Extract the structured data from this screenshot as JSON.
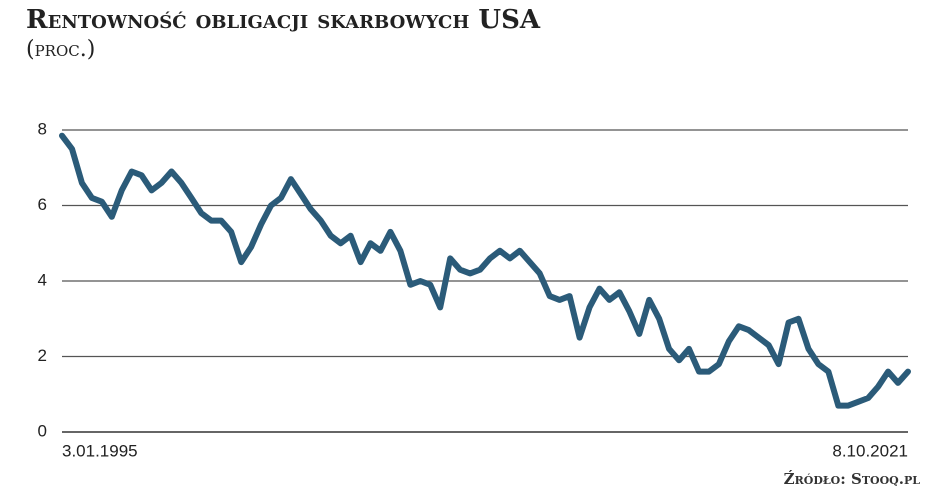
{
  "chart_data": {
    "type": "line",
    "title": "Rentowność obligacji skarbowych USA",
    "subtitle": "(proc.)",
    "source": "Źródło: Stooq.pl",
    "categories": [
      "3.01.1995",
      null,
      null,
      null,
      null,
      null,
      null,
      null,
      null,
      null,
      null,
      null,
      null,
      null,
      null,
      null,
      null,
      null,
      null,
      null,
      null,
      null,
      null,
      null,
      null,
      null,
      null,
      null,
      null,
      null,
      null,
      null,
      null,
      null,
      null,
      null,
      null,
      null,
      null,
      null,
      null,
      null,
      null,
      null,
      null,
      null,
      null,
      null,
      null,
      null,
      null,
      null,
      null,
      null,
      null,
      null,
      null,
      null,
      null,
      null,
      null,
      null,
      null,
      null,
      null,
      null,
      null,
      null,
      null,
      null,
      null,
      null,
      null,
      null,
      null,
      null,
      null,
      null,
      null,
      null,
      null,
      null,
      null,
      null,
      null,
      "8.10.2021"
    ],
    "series": [
      {
        "name": "Rentowność",
        "color": "#2b5b79",
        "values": [
          7.85,
          7.5,
          6.6,
          6.2,
          6.1,
          5.7,
          6.4,
          6.9,
          6.8,
          6.4,
          6.6,
          6.9,
          6.6,
          6.2,
          5.8,
          5.6,
          5.6,
          5.3,
          4.5,
          4.9,
          5.5,
          6.0,
          6.2,
          6.7,
          6.3,
          5.9,
          5.6,
          5.2,
          5.0,
          5.2,
          4.5,
          5.0,
          4.8,
          5.3,
          4.8,
          3.9,
          4.0,
          3.9,
          3.3,
          4.6,
          4.3,
          4.2,
          4.3,
          4.6,
          4.8,
          4.6,
          4.8,
          4.5,
          4.2,
          3.6,
          3.5,
          3.6,
          2.5,
          3.3,
          3.8,
          3.5,
          3.7,
          3.2,
          2.6,
          3.5,
          3.0,
          2.2,
          1.9,
          2.2,
          1.6,
          1.6,
          1.8,
          2.4,
          2.8,
          2.7,
          2.5,
          2.3,
          1.8,
          2.9,
          3.0,
          2.2,
          1.8,
          1.6,
          0.7,
          0.7,
          0.8,
          0.9,
          1.2,
          1.6,
          1.3,
          1.6
        ]
      }
    ],
    "ylim": [
      0,
      8
    ],
    "yticks": [
      0,
      2,
      4,
      6,
      8
    ],
    "grid": true
  }
}
